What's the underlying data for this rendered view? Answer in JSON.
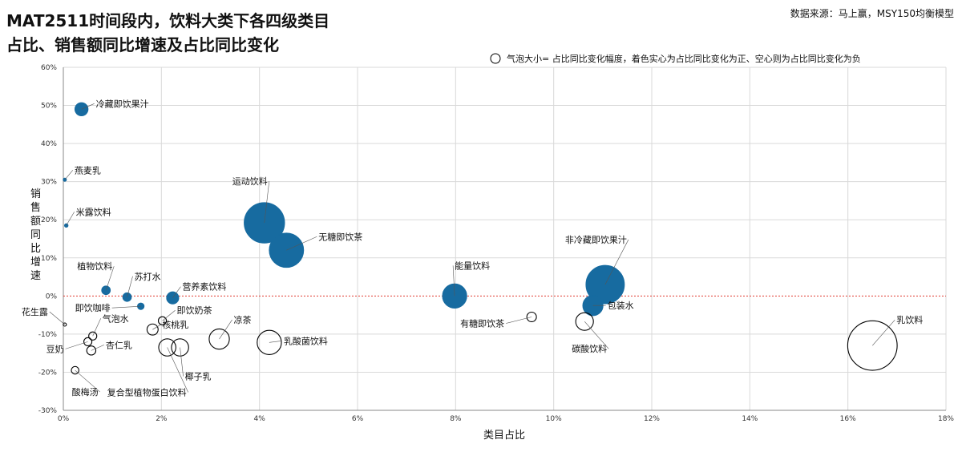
{
  "header": {
    "title_line1": "MAT2511时间段内，饮料大类下各四级类目",
    "title_line2": "占比、销售额同比增速及占比同比变化",
    "source": "数据来源：马上赢，MSY150均衡模型"
  },
  "legend": {
    "text": "气泡大小=  占比同比变化幅度，着色实心为占比同比变化为正、空心则为占比同比变化为负"
  },
  "colors": {
    "positive": "#176ba0",
    "negative_stroke": "#000000",
    "baseline": "#e03c31",
    "grid": "#d9d9d9"
  },
  "chart_data": {
    "type": "scatter",
    "xlabel": "类目占比",
    "ylabel": "销售额同比增速",
    "xlim": [
      0,
      18
    ],
    "ylim": [
      -30,
      60
    ],
    "xticks": [
      "0%",
      "2%",
      "4%",
      "6%",
      "8%",
      "10%",
      "12%",
      "14%",
      "16%",
      "18%"
    ],
    "yticks": [
      "-30%",
      "-20%",
      "-10%",
      "0%",
      "10%",
      "20%",
      "30%",
      "40%",
      "50%",
      "60%"
    ],
    "points": [
      {
        "name": "冷藏即饮果汁",
        "x": 0.37,
        "y": 49,
        "size": 1.3,
        "positive": true
      },
      {
        "name": "燕麦乳",
        "x": 0.03,
        "y": 30.5,
        "size": 0.25,
        "positive": true
      },
      {
        "name": "米露饮料",
        "x": 0.06,
        "y": 18.5,
        "size": 0.35,
        "positive": true
      },
      {
        "name": "运动饮料",
        "x": 4.1,
        "y": 19.2,
        "size": 4.0,
        "positive": true
      },
      {
        "name": "无糖即饮茶",
        "x": 4.55,
        "y": 12,
        "size": 3.4,
        "positive": true
      },
      {
        "name": "植物饮料",
        "x": 0.87,
        "y": 1.5,
        "size": 0.85,
        "positive": true
      },
      {
        "name": "苏打水",
        "x": 1.3,
        "y": -0.3,
        "size": 0.85,
        "positive": true
      },
      {
        "name": "营养素饮料",
        "x": 2.23,
        "y": -0.5,
        "size": 1.2,
        "positive": true
      },
      {
        "name": "即饮咖啡",
        "x": 1.58,
        "y": -2.7,
        "size": 0.65,
        "positive": true
      },
      {
        "name": "能量饮料",
        "x": 7.98,
        "y": 0,
        "size": 2.4,
        "positive": true
      },
      {
        "name": "非冷藏即饮果汁",
        "x": 11.05,
        "y": 3,
        "size": 3.8,
        "positive": true
      },
      {
        "name": "包装水",
        "x": 10.8,
        "y": -2.5,
        "size": 2.0,
        "positive": true
      },
      {
        "name": "花生露",
        "x": 0.03,
        "y": -7.5,
        "size": 0.2,
        "positive": false
      },
      {
        "name": "即饮奶茶",
        "x": 2.02,
        "y": -6.5,
        "size": 0.8,
        "positive": false
      },
      {
        "name": "核桃乳",
        "x": 1.82,
        "y": -8.8,
        "size": 1.1,
        "positive": false
      },
      {
        "name": "气泡水",
        "x": 0.6,
        "y": -10.5,
        "size": 0.8,
        "positive": false
      },
      {
        "name": "杏仁乳",
        "x": 0.57,
        "y": -14.3,
        "size": 0.9,
        "positive": false
      },
      {
        "name": "豆奶",
        "x": 0.5,
        "y": -12,
        "size": 0.8,
        "positive": false
      },
      {
        "name": "酸梅汤",
        "x": 0.24,
        "y": -19.5,
        "size": 0.75,
        "positive": false
      },
      {
        "name": "凉茶",
        "x": 3.18,
        "y": -11.3,
        "size": 2.0,
        "positive": false
      },
      {
        "name": "复合型植物蛋白饮料",
        "x": 2.12,
        "y": -13.5,
        "size": 1.7,
        "positive": false
      },
      {
        "name": "椰子乳",
        "x": 2.38,
        "y": -13.5,
        "size": 1.7,
        "positive": false
      },
      {
        "name": "乳酸菌饮料",
        "x": 4.2,
        "y": -12.2,
        "size": 2.4,
        "positive": false
      },
      {
        "name": "有糖即饮茶",
        "x": 9.55,
        "y": -5.5,
        "size": 0.95,
        "positive": false
      },
      {
        "name": "碳酸饮料",
        "x": 10.63,
        "y": -6.7,
        "size": 1.75,
        "positive": false
      },
      {
        "name": "乳饮料",
        "x": 16.5,
        "y": -13,
        "size": 4.9,
        "positive": false
      }
    ]
  }
}
